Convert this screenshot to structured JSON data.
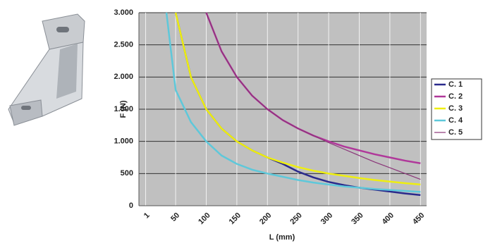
{
  "chart_data": {
    "type": "line",
    "ylabel": "F (N)",
    "xlabel": "L (mm)",
    "x": [
      35,
      50,
      75,
      100,
      125,
      150,
      175,
      200,
      225,
      250,
      275,
      300,
      325,
      350,
      375,
      400,
      425,
      450
    ],
    "series": [
      {
        "name": "C. 1",
        "color": "#2a2a8c",
        "width": 2.5,
        "values": [
          null,
          3000,
          2000,
          1500,
          1200,
          1000,
          860,
          750,
          650,
          530,
          440,
          370,
          320,
          280,
          250,
          220,
          190,
          165
        ]
      },
      {
        "name": "C. 2",
        "color": "#b0389a",
        "width": 2.5,
        "values": [
          null,
          null,
          null,
          3000,
          2400,
          2000,
          1710,
          1500,
          1330,
          1200,
          1090,
          1000,
          920,
          860,
          800,
          750,
          700,
          660
        ]
      },
      {
        "name": "C. 3",
        "color": "#eeee10",
        "width": 2.5,
        "values": [
          null,
          3000,
          2000,
          1500,
          1200,
          1000,
          860,
          750,
          670,
          600,
          545,
          500,
          465,
          430,
          400,
          375,
          350,
          330
        ]
      },
      {
        "name": "C. 4",
        "color": "#5ec8da",
        "width": 2.5,
        "values": [
          3000,
          1800,
          1300,
          1000,
          780,
          650,
          560,
          500,
          450,
          400,
          360,
          330,
          300,
          280,
          260,
          245,
          230,
          215
        ]
      },
      {
        "name": "C. 5",
        "color": "#8a3579",
        "width": 1.2,
        "values": [
          null,
          null,
          null,
          3000,
          2400,
          2000,
          1710,
          1500,
          1330,
          1200,
          1090,
          980,
          880,
          780,
          680,
          590,
          500,
          410
        ]
      }
    ],
    "xlim": [
      -10,
      460
    ],
    "xticks": [
      1,
      50,
      100,
      150,
      200,
      250,
      300,
      350,
      400,
      450
    ],
    "ylim": [
      0,
      3000
    ],
    "yticks": [
      0,
      500,
      {
        "value": 1000,
        "label": "1.000"
      },
      {
        "value": 1500,
        "label": "1.500"
      },
      {
        "value": 2000,
        "label": "2.000"
      },
      {
        "value": 2500,
        "label": "2.500"
      },
      {
        "value": 3000,
        "label": "3.000"
      }
    ],
    "grid": true,
    "legend": "right"
  }
}
